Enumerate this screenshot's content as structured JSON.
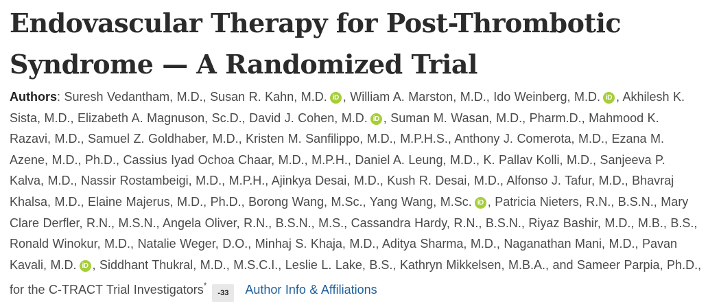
{
  "title": "Endovascular Therapy for Post-Thrombotic Syndrome — A Randomized Trial",
  "authors": {
    "label": "Authors",
    "seg1": "Suresh Vedantham, M.D., Susan R. Kahn, M.D.",
    "seg2": ", William A. Marston, M.D., Ido Weinberg, M.D.",
    "seg3": ", Akhilesh K. Sista, M.D., Elizabeth A. Magnuson, Sc.D., David J. Cohen, M.D.",
    "seg4": ", Suman M. Wasan, M.D., Pharm.D., Mahmood K. Razavi, M.D., Samuel Z. Goldhaber, M.D., Kristen M. Sanfilippo, M.D., M.P.H.S., Anthony J. Comerota, M.D., Ezana M. Azene, M.D., Ph.D., Cassius Iyad Ochoa Chaar, M.D., M.P.H., Daniel A. Leung, M.D., K. Pallav Kolli, M.D., Sanjeeva P. Kalva, M.D., Nassir Rostambeigi, M.D., M.P.H., Ajinkya Desai, M.D., Kush R. Desai, M.D., Alfonso J. Tafur, M.D., Bhavraj Khalsa, M.D., Elaine Majerus, M.D., Ph.D., Borong Wang, M.Sc., Yang Wang, M.Sc.",
    "seg5": ", Patricia Nieters, R.N., B.S.N., Mary Clare Derfler, R.N., M.S.N., Angela Oliver, R.N., B.S.N., M.S., Cassandra Hardy, R.N., B.S.N., Riyaz Bashir, M.D., M.B., B.S., Ronald Winokur, M.D., Natalie Weger, D.O., Minhaj S. Khaja, M.D., Aditya Sharma, M.D., Naganathan Mani, M.D., Pavan Kavali, M.D.",
    "seg6": ", Siddhant Thukral, M.D., M.S.C.I., Leslie L. Lake, B.S., Kathryn Mikkelsen, M.B.A., and Sameer Parpia, Ph.D., for the C-TRACT Trial Investigators",
    "asterisk": "*",
    "more_count": "-33",
    "affiliations_link": "Author Info & Affiliations"
  },
  "orcid_icon_text": "iD",
  "colors": {
    "orcid": "#a6ce39",
    "link": "#1f5f9a",
    "badge_bg": "#e8e8e8"
  }
}
